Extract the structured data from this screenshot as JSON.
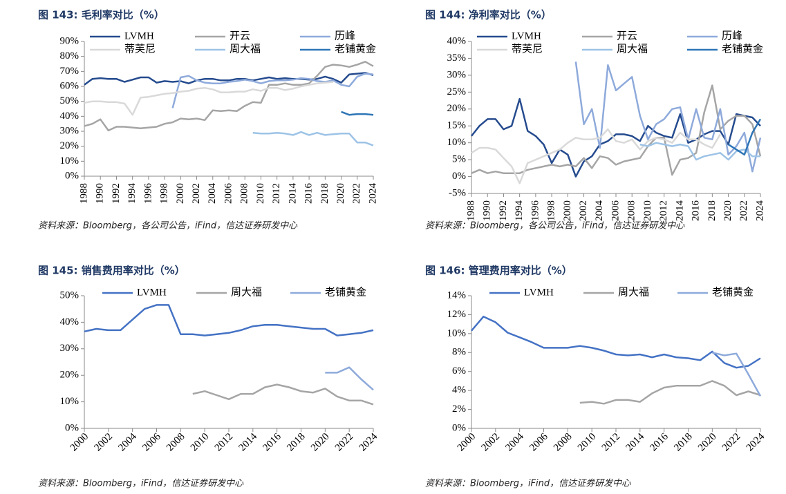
{
  "chart_data": [
    {
      "type": "line",
      "title": "图 143:  毛利率对比（%）",
      "note": "资料来源：Bloomberg，各公司公告，iFind，信达证券研发中心",
      "x": [
        1988,
        1989,
        1990,
        1991,
        1992,
        1993,
        1994,
        1995,
        1996,
        1997,
        1998,
        1999,
        2000,
        2001,
        2002,
        2003,
        2004,
        2005,
        2006,
        2007,
        2008,
        2009,
        2010,
        2011,
        2012,
        2013,
        2014,
        2015,
        2016,
        2017,
        2018,
        2019,
        2020,
        2021,
        2022,
        2023,
        2024
      ],
      "xlim": [
        1988,
        2024
      ],
      "xticks": [
        1988,
        1990,
        1992,
        1994,
        1996,
        1998,
        2000,
        2002,
        2004,
        2006,
        2008,
        2010,
        2012,
        2014,
        2016,
        2018,
        2020,
        2022,
        2024
      ],
      "ylim": [
        0,
        90
      ],
      "yticks": [
        {
          "value": 0,
          "label": "0%"
        },
        {
          "value": 10,
          "label": "10%"
        },
        {
          "value": 20,
          "label": "20%"
        },
        {
          "value": 30,
          "label": "30%"
        },
        {
          "value": 40,
          "label": "40%"
        },
        {
          "value": 50,
          "label": "50%"
        },
        {
          "value": 60,
          "label": "60%"
        },
        {
          "value": 70,
          "label": "70%"
        },
        {
          "value": 80,
          "label": "80%"
        },
        {
          "value": 90,
          "label": "90%"
        }
      ],
      "legend": "top",
      "series": [
        {
          "name": "LVMH",
          "color": "#254b8e",
          "values": [
            61,
            65,
            65.5,
            65,
            65,
            63,
            64.5,
            66,
            66,
            62.5,
            63.5,
            63,
            63.5,
            62,
            64,
            65,
            65,
            64,
            64,
            65,
            65,
            64,
            65,
            66,
            65,
            65.5,
            65,
            65,
            64.5,
            65,
            66.5,
            65,
            62.5,
            68,
            68.5,
            69,
            67.5
          ]
        },
        {
          "name": "开云",
          "color": "#a5a5a5",
          "values": [
            33.5,
            35,
            38,
            30.5,
            33,
            33,
            32.5,
            32,
            32.5,
            33,
            35,
            36,
            38.5,
            38,
            38.5,
            37.5,
            44,
            43.5,
            44,
            43.5,
            47,
            49.5,
            49,
            61,
            61,
            62,
            61,
            61,
            62,
            67,
            73,
            74.5,
            74,
            73,
            74.5,
            76.5,
            73.5
          ]
        },
        {
          "name": "历峰",
          "color": "#8eaadb",
          "values": [
            null,
            null,
            null,
            null,
            null,
            null,
            null,
            null,
            null,
            null,
            null,
            45.5,
            66,
            67,
            64,
            62.5,
            62,
            62,
            63,
            63.5,
            64.5,
            63.5,
            62,
            63.5,
            64,
            64,
            64.5,
            65.5,
            65,
            63.5,
            63,
            64,
            61,
            60,
            66.5,
            68.5,
            68
          ]
        },
        {
          "name": "蒂芙尼",
          "color": "#d9d9d9",
          "values": [
            49,
            50,
            50,
            49.5,
            49.5,
            48.5,
            41,
            52.5,
            53,
            54,
            55,
            55.5,
            56.5,
            57,
            58.5,
            59,
            58,
            56,
            56,
            56.5,
            56.5,
            58,
            57,
            59,
            59,
            57.5,
            58.5,
            60,
            61,
            62,
            62.5,
            63,
            null,
            null,
            null,
            null,
            null
          ]
        },
        {
          "name": "周大福",
          "color": "#9dc3e6",
          "values": [
            null,
            null,
            null,
            null,
            null,
            null,
            null,
            null,
            null,
            null,
            null,
            null,
            null,
            null,
            null,
            null,
            null,
            null,
            null,
            null,
            null,
            29,
            28.5,
            28.5,
            29,
            28.5,
            27.5,
            29.5,
            27.5,
            29,
            27.5,
            28,
            28.5,
            28.5,
            22.5,
            22.5,
            20.5
          ]
        },
        {
          "name": "老铺黄金",
          "color": "#2e75b6",
          "values": [
            null,
            null,
            null,
            null,
            null,
            null,
            null,
            null,
            null,
            null,
            null,
            null,
            null,
            null,
            null,
            null,
            null,
            null,
            null,
            null,
            null,
            null,
            null,
            null,
            null,
            null,
            null,
            null,
            null,
            null,
            null,
            null,
            43,
            41,
            41.5,
            41.5,
            41
          ]
        }
      ]
    },
    {
      "type": "line",
      "title": "图 144:  净利率对比（%）",
      "note": "资料来源：Bloomberg，各公司公告，iFind，信达证券研发中心",
      "x": [
        1988,
        1989,
        1990,
        1991,
        1992,
        1993,
        1994,
        1995,
        1996,
        1997,
        1998,
        1999,
        2000,
        2001,
        2002,
        2003,
        2004,
        2005,
        2006,
        2007,
        2008,
        2009,
        2010,
        2011,
        2012,
        2013,
        2014,
        2015,
        2016,
        2017,
        2018,
        2019,
        2020,
        2021,
        2022,
        2023,
        2024
      ],
      "xlim": [
        1988,
        2024
      ],
      "xticks": [
        1988,
        1990,
        1992,
        1994,
        1996,
        1998,
        2000,
        2002,
        2004,
        2006,
        2008,
        2010,
        2012,
        2014,
        2016,
        2018,
        2020,
        2022,
        2024
      ],
      "ylim": [
        -5,
        40
      ],
      "yticks": [
        {
          "value": -5,
          "label": "-5%"
        },
        {
          "value": 0,
          "label": "0%"
        },
        {
          "value": 5,
          "label": "5%"
        },
        {
          "value": 10,
          "label": "10%"
        },
        {
          "value": 15,
          "label": "15%"
        },
        {
          "value": 20,
          "label": "20%"
        },
        {
          "value": 25,
          "label": "25%"
        },
        {
          "value": 30,
          "label": "30%"
        },
        {
          "value": 35,
          "label": "35%"
        },
        {
          "value": 40,
          "label": "40%"
        }
      ],
      "legend": "top",
      "series": [
        {
          "name": "LVMH",
          "color": "#254b8e",
          "values": [
            12,
            15,
            17,
            17,
            14,
            15,
            23,
            13.5,
            12,
            9.5,
            4,
            8,
            6.5,
            0,
            4.5,
            6,
            9.5,
            10.5,
            12.5,
            12.5,
            12,
            10.5,
            15,
            13,
            12,
            11.5,
            18.5,
            10,
            11,
            12.5,
            13.5,
            13.5,
            9.5,
            18.5,
            18,
            17.5,
            15
          ]
        },
        {
          "name": "开云",
          "color": "#a5a5a5",
          "values": [
            1,
            2,
            1,
            1.5,
            1,
            1,
            1,
            2,
            2.5,
            3,
            3.5,
            3,
            3.5,
            3,
            5.5,
            2.5,
            6,
            5.5,
            3.5,
            4.5,
            5,
            5.5,
            9,
            11.5,
            11.5,
            0.5,
            5,
            5.5,
            7,
            19,
            27,
            14,
            16.5,
            18,
            18,
            15.5,
            6
          ]
        },
        {
          "name": "历峰",
          "color": "#8eaadb",
          "values": [
            null,
            null,
            null,
            null,
            null,
            null,
            null,
            null,
            null,
            null,
            null,
            null,
            null,
            34,
            15.5,
            20,
            8.5,
            33,
            25.5,
            27.5,
            29.5,
            18,
            11,
            15.5,
            17,
            20,
            20.5,
            11,
            20,
            11.5,
            11,
            20,
            6.5,
            9,
            13,
            1.5,
            11.5
          ]
        },
        {
          "name": "蒂芙尼",
          "color": "#d9d9d9",
          "values": [
            7,
            8.5,
            8.5,
            8,
            5.5,
            3,
            -2,
            4,
            5,
            6,
            7,
            8,
            10,
            11.5,
            11,
            11,
            11.5,
            14,
            10.5,
            10,
            11,
            8,
            10.5,
            11.5,
            11,
            10,
            13,
            11,
            11,
            9.5,
            8.5,
            12.5,
            null,
            null,
            null,
            null,
            null
          ]
        },
        {
          "name": "周大福",
          "color": "#9dc3e6",
          "values": [
            null,
            null,
            null,
            null,
            null,
            null,
            null,
            null,
            null,
            null,
            null,
            null,
            null,
            null,
            null,
            null,
            null,
            null,
            null,
            null,
            null,
            9.5,
            9,
            10,
            9.5,
            9,
            9.5,
            9,
            5,
            6,
            6.5,
            7,
            5,
            7.5,
            8,
            6,
            6
          ]
        },
        {
          "name": "老铺黄金",
          "color": "#2e75b6",
          "values": [
            null,
            null,
            null,
            null,
            null,
            null,
            null,
            null,
            null,
            null,
            null,
            null,
            null,
            null,
            null,
            null,
            null,
            null,
            null,
            null,
            null,
            null,
            null,
            null,
            null,
            null,
            null,
            null,
            null,
            null,
            null,
            null,
            9.5,
            8,
            6.5,
            13,
            17
          ]
        }
      ]
    },
    {
      "type": "line",
      "title": "图 145:  销售费用率对比（%）",
      "note": "资料来源：Bloomberg，iFind，信达证券研发中心",
      "x": [
        2000,
        2001,
        2002,
        2003,
        2004,
        2005,
        2006,
        2007,
        2008,
        2009,
        2010,
        2011,
        2012,
        2013,
        2014,
        2015,
        2016,
        2017,
        2018,
        2019,
        2020,
        2021,
        2022,
        2023,
        2024
      ],
      "xlim": [
        2000,
        2024
      ],
      "xticks": [
        2000,
        2002,
        2004,
        2006,
        2008,
        2010,
        2012,
        2014,
        2016,
        2018,
        2020,
        2022,
        2024
      ],
      "ylim": [
        0,
        50
      ],
      "yticks": [
        {
          "value": 0,
          "label": "0%"
        },
        {
          "value": 10,
          "label": "10%"
        },
        {
          "value": 20,
          "label": "20%"
        },
        {
          "value": 30,
          "label": "30%"
        },
        {
          "value": 40,
          "label": "40%"
        },
        {
          "value": 50,
          "label": "50%"
        }
      ],
      "legend": "top",
      "series": [
        {
          "name": "LVMH",
          "color": "#4472c4",
          "values": [
            36.5,
            37.5,
            37,
            37,
            41,
            45,
            46.5,
            46.5,
            35.5,
            35.5,
            35,
            35.5,
            36,
            37,
            38.5,
            39,
            39,
            38.5,
            38,
            37.5,
            37.5,
            35,
            35.5,
            36,
            37
          ]
        },
        {
          "name": "周大福",
          "color": "#a5a5a5",
          "values": [
            null,
            null,
            null,
            null,
            null,
            null,
            null,
            null,
            null,
            13,
            14,
            12.5,
            11,
            13,
            13,
            15.5,
            16.5,
            15.5,
            14,
            13.5,
            15,
            12,
            10.5,
            10.5,
            9
          ]
        },
        {
          "name": "老铺黄金",
          "color": "#8eaadb",
          "values": [
            null,
            null,
            null,
            null,
            null,
            null,
            null,
            null,
            null,
            null,
            null,
            null,
            null,
            null,
            null,
            null,
            null,
            null,
            null,
            null,
            21,
            21,
            23,
            18.5,
            14.5
          ]
        }
      ]
    },
    {
      "type": "line",
      "title": "图 146:  管理费用率对比（%）",
      "note": "资料来源：Bloomberg，iFind，信达证券研发中心",
      "x": [
        2000,
        2001,
        2002,
        2003,
        2004,
        2005,
        2006,
        2007,
        2008,
        2009,
        2010,
        2011,
        2012,
        2013,
        2014,
        2015,
        2016,
        2017,
        2018,
        2019,
        2020,
        2021,
        2022,
        2023,
        2024
      ],
      "xlim": [
        2000,
        2024
      ],
      "xticks": [
        2000,
        2002,
        2004,
        2006,
        2008,
        2010,
        2012,
        2014,
        2016,
        2018,
        2020,
        2022,
        2024
      ],
      "ylim": [
        0,
        14
      ],
      "yticks": [
        {
          "value": 0,
          "label": "0%"
        },
        {
          "value": 2,
          "label": "2%"
        },
        {
          "value": 4,
          "label": "4%"
        },
        {
          "value": 6,
          "label": "6%"
        },
        {
          "value": 8,
          "label": "8%"
        },
        {
          "value": 10,
          "label": "10%"
        },
        {
          "value": 12,
          "label": "12%"
        },
        {
          "value": 14,
          "label": "14%"
        }
      ],
      "legend": "top",
      "series": [
        {
          "name": "LVMH",
          "color": "#4472c4",
          "values": [
            10.3,
            11.8,
            11.2,
            10.1,
            9.6,
            9.1,
            8.5,
            8.5,
            8.5,
            8.7,
            8.5,
            8.2,
            7.8,
            7.7,
            7.8,
            7.5,
            7.8,
            7.5,
            7.4,
            7.2,
            8.1,
            6.9,
            6.4,
            6.6,
            7.4
          ]
        },
        {
          "name": "周大福",
          "color": "#a5a5a5",
          "values": [
            null,
            null,
            null,
            null,
            null,
            null,
            null,
            null,
            null,
            2.7,
            2.8,
            2.6,
            3,
            3,
            2.8,
            3.7,
            4.3,
            4.5,
            4.5,
            4.5,
            5,
            4.5,
            3.5,
            3.9,
            3.5
          ]
        },
        {
          "name": "老铺黄金",
          "color": "#8eaadb",
          "values": [
            null,
            null,
            null,
            null,
            null,
            null,
            null,
            null,
            null,
            null,
            null,
            null,
            null,
            null,
            null,
            null,
            null,
            null,
            null,
            null,
            8,
            7.7,
            7.9,
            5.7,
            3.4
          ]
        }
      ]
    }
  ]
}
